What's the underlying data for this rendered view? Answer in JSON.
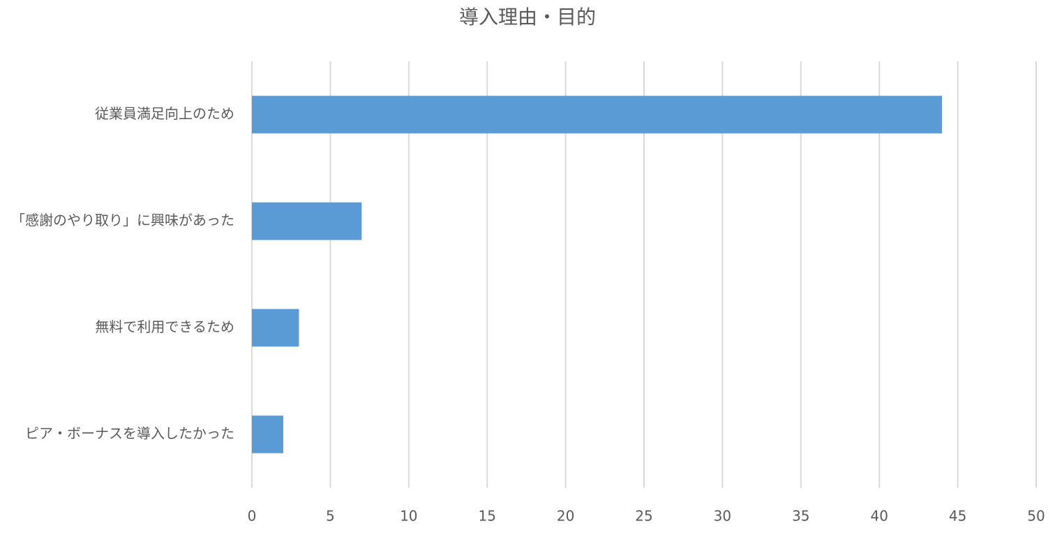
{
  "chart_data": {
    "type": "bar",
    "orientation": "horizontal",
    "title": "導入理由・目的",
    "categories": [
      "従業員満足向上のため",
      "「感謝のやり取り」に興味があった",
      "無料で利用できるため",
      "ピア・ボーナスを導入したかった"
    ],
    "values": [
      44,
      7,
      3,
      2
    ],
    "color": "#5b9bd5",
    "xlim": [
      0,
      50
    ],
    "xticks": [
      0,
      5,
      10,
      15,
      20,
      25,
      30,
      35,
      40,
      45,
      50
    ],
    "grid": true
  }
}
